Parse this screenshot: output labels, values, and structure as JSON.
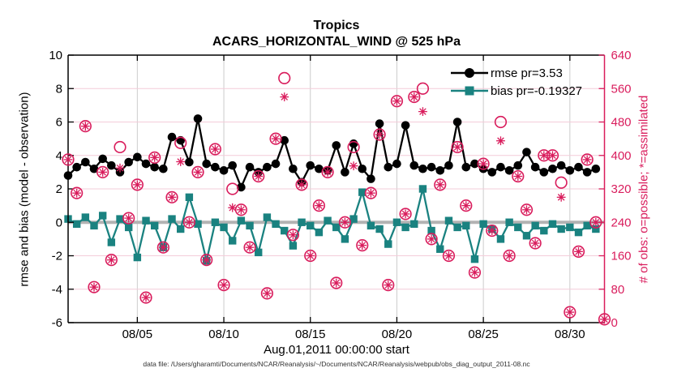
{
  "chart_data": {
    "type": "line",
    "title": "Tropics",
    "subtitle": "ACARS_HORIZONTAL_WIND @ 525 hPa",
    "xlabel": "Aug.01,2011 00:00:00 start",
    "ylabel_left": "rmse and bias (model - observation)",
    "ylabel_right": "# of obs: o=possible; *=assimilated",
    "caption": "data file: /Users/gharamti/Documents/NCAR/Reanalysis/~/Documents/NCAR/Reanalysis/webpub/obs_diag_output_2011-08.nc",
    "legend_position": "top-right-inside",
    "grid": true,
    "legend": [
      {
        "label": "rmse pr=3.53",
        "marker": "circle",
        "color": "#000000"
      },
      {
        "label": "bias pr=-0.19327",
        "marker": "square",
        "color": "#1a8280"
      }
    ],
    "x_range_days": [
      1,
      32
    ],
    "xticks": [
      {
        "day": 5,
        "label": "08/05"
      },
      {
        "day": 10,
        "label": "08/10"
      },
      {
        "day": 15,
        "label": "08/15"
      },
      {
        "day": 20,
        "label": "08/20"
      },
      {
        "day": 25,
        "label": "08/25"
      },
      {
        "day": 30,
        "label": "08/30"
      }
    ],
    "ylim_left": [
      -6,
      10
    ],
    "yticks_left": [
      10,
      8,
      6,
      4,
      2,
      0,
      -2,
      -4,
      -6
    ],
    "ylim_right": [
      0,
      640
    ],
    "yticks_right": [
      640,
      560,
      480,
      400,
      320,
      240,
      160,
      80,
      0
    ],
    "colors": {
      "rmse": "#000000",
      "bias": "#1a8280",
      "obs": "#d91c5c",
      "zero_line": "#b3b3b3",
      "grid_vertical": "#cccccc",
      "grid_horizontal": "#f3ccd9",
      "spine": "#000000"
    },
    "x_days": [
      1,
      1.5,
      2,
      2.5,
      3,
      3.5,
      4,
      4.5,
      5,
      5.5,
      6,
      6.5,
      7,
      7.5,
      8,
      8.5,
      9,
      9.5,
      10,
      10.5,
      11,
      11.5,
      12,
      12.5,
      13,
      13.5,
      14,
      14.5,
      15,
      15.5,
      16,
      16.5,
      17,
      17.5,
      18,
      18.5,
      19,
      19.5,
      20,
      20.5,
      21,
      21.5,
      22,
      22.5,
      23,
      23.5,
      24,
      24.5,
      25,
      25.5,
      26,
      26.5,
      27,
      27.5,
      28,
      28.5,
      29,
      29.5,
      30,
      30.5,
      31,
      31.5,
      32
    ],
    "series": {
      "rmse": [
        2.8,
        3.3,
        3.6,
        3.2,
        3.8,
        3.4,
        3.0,
        3.6,
        3.9,
        3.5,
        3.3,
        3.2,
        5.1,
        4.9,
        3.6,
        6.2,
        3.5,
        3.3,
        3.1,
        3.4,
        2.1,
        3.3,
        3.0,
        3.3,
        3.5,
        4.9,
        3.2,
        2.4,
        3.4,
        3.2,
        3.1,
        4.6,
        3.0,
        4.7,
        3.2,
        2.6,
        5.9,
        3.3,
        3.5,
        5.8,
        3.4,
        3.2,
        3.3,
        3.1,
        3.4,
        6.0,
        3.3,
        3.5,
        3.2,
        3.0,
        3.3,
        3.1,
        3.4,
        4.2,
        3.3,
        3.0,
        3.2,
        3.4,
        3.1,
        3.3,
        3.0,
        3.2,
        null
      ],
      "bias": [
        0.2,
        -0.1,
        0.3,
        -0.2,
        0.4,
        -1.2,
        0.2,
        -0.3,
        -2.1,
        0.1,
        -0.2,
        -1.5,
        0.2,
        -0.4,
        1.5,
        -0.1,
        -2.3,
        0.0,
        -0.3,
        -1.1,
        0.1,
        -0.2,
        -1.8,
        0.3,
        -0.1,
        -0.5,
        -1.4,
        0.0,
        -0.2,
        -0.6,
        0.1,
        -0.3,
        -1.0,
        0.2,
        1.8,
        -0.2,
        -0.4,
        -1.3,
        0.0,
        -0.3,
        -0.1,
        2.0,
        -0.5,
        -1.6,
        0.1,
        -0.3,
        -0.2,
        -2.2,
        -0.1,
        -0.4,
        -1.0,
        0.0,
        -0.3,
        -0.8,
        -0.2,
        -0.5,
        -0.1,
        -0.4,
        -0.3,
        -0.6,
        -0.2,
        -0.4,
        null
      ],
      "obs_possible": [
        390,
        310,
        470,
        85,
        360,
        150,
        420,
        250,
        330,
        60,
        395,
        180,
        300,
        430,
        240,
        360,
        150,
        415,
        90,
        320,
        270,
        180,
        350,
        70,
        440,
        585,
        210,
        330,
        160,
        280,
        360,
        95,
        240,
        420,
        185,
        310,
        450,
        90,
        530,
        260,
        540,
        560,
        200,
        330,
        160,
        420,
        280,
        120,
        380,
        220,
        480,
        160,
        350,
        270,
        190,
        400,
        400,
        335,
        25,
        170,
        390,
        240,
        8
      ],
      "obs_assimilated": [
        390,
        310,
        470,
        85,
        360,
        150,
        370,
        250,
        330,
        60,
        395,
        180,
        300,
        385,
        240,
        360,
        150,
        415,
        90,
        275,
        270,
        180,
        350,
        70,
        440,
        540,
        210,
        330,
        160,
        280,
        360,
        95,
        240,
        375,
        185,
        310,
        450,
        90,
        530,
        260,
        540,
        505,
        200,
        330,
        160,
        420,
        280,
        120,
        380,
        220,
        435,
        160,
        350,
        270,
        190,
        400,
        400,
        300,
        25,
        170,
        390,
        240,
        8
      ]
    }
  }
}
